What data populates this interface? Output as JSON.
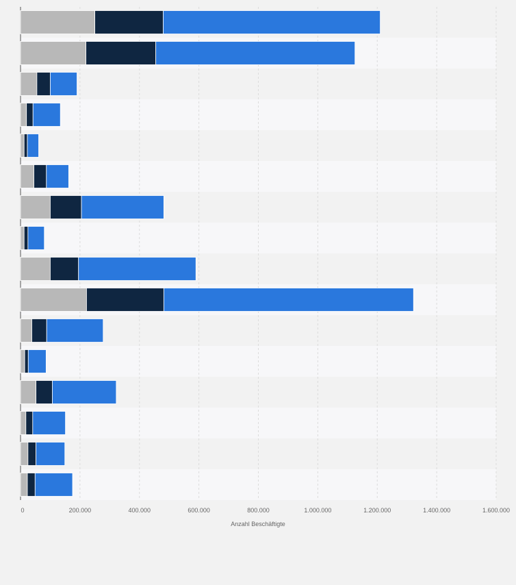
{
  "chart_data": {
    "type": "bar",
    "orientation": "horizontal",
    "stacked": true,
    "xlabel": "Anzahl Beschäftigte",
    "xlim": [
      0,
      1600000
    ],
    "x_ticks": [
      "0",
      "200.000",
      "400.000",
      "600.000",
      "800.000",
      "1.000.000",
      "1.200.000",
      "1.400.000",
      "1.600.000"
    ],
    "grid": true,
    "categories": [
      "",
      "",
      "",
      "",
      "",
      "",
      "",
      "",
      "",
      "",
      "",
      "",
      "",
      "",
      "",
      ""
    ],
    "series": [
      {
        "color": "#b8b8b8",
        "values": [
          250000,
          220000,
          55000,
          20000,
          12000,
          45000,
          100000,
          12000,
          100000,
          222000,
          38000,
          14000,
          52000,
          18000,
          25000,
          23000
        ]
      },
      {
        "color": "#0f2641",
        "values": [
          230000,
          235000,
          45000,
          22000,
          11000,
          42000,
          105000,
          13000,
          95000,
          260000,
          50000,
          12000,
          55000,
          23000,
          27000,
          26000
        ]
      },
      {
        "color": "#2a78dd",
        "values": [
          730000,
          670000,
          90000,
          92000,
          38000,
          75000,
          277000,
          55000,
          395000,
          840000,
          190000,
          60000,
          215000,
          110000,
          97000,
          126000
        ]
      }
    ]
  }
}
